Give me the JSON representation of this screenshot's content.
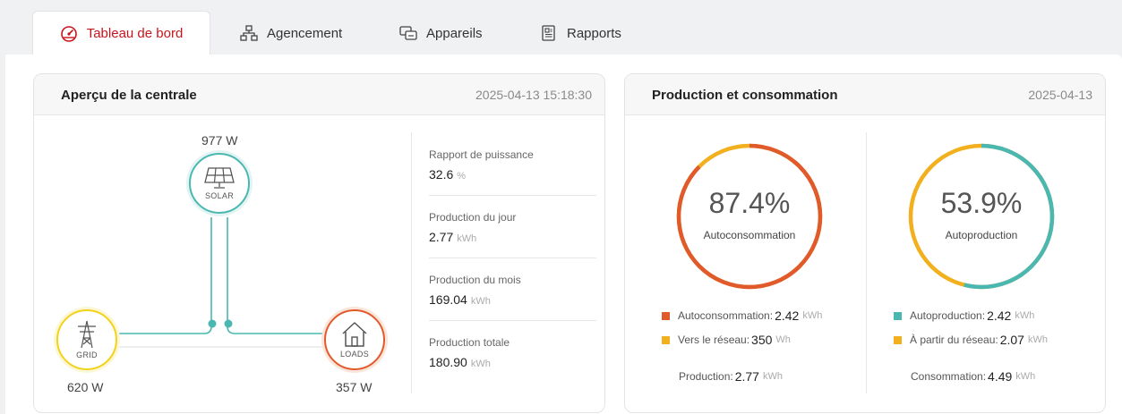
{
  "tabs": [
    {
      "label": "Tableau de bord",
      "icon": "gauge-icon",
      "active": true
    },
    {
      "label": "Agencement",
      "icon": "sitemap-icon",
      "active": false
    },
    {
      "label": "Appareils",
      "icon": "devices-icon",
      "active": false
    },
    {
      "label": "Rapports",
      "icon": "report-icon",
      "active": false
    }
  ],
  "overview": {
    "title": "Aperçu de la centrale",
    "datetime": "2025-04-13 15:18:30",
    "solar": {
      "power": "977 W",
      "label": "SOLAR"
    },
    "grid": {
      "power": "620 W",
      "label": "GRID"
    },
    "loads": {
      "power": "357 W",
      "label": "LOADS"
    },
    "stats": [
      {
        "title": "Rapport de puissance",
        "value": "32.6",
        "unit": "%"
      },
      {
        "title": "Production du jour",
        "value": "2.77",
        "unit": "kWh"
      },
      {
        "title": "Production du mois",
        "value": "169.04",
        "unit": "kWh"
      },
      {
        "title": "Production totale",
        "value": "180.90",
        "unit": "kWh"
      }
    ]
  },
  "prodcons": {
    "title": "Production et consommation",
    "date": "2025-04-13",
    "left": {
      "percent": "87.4%",
      "fraction": 0.874,
      "label": "Autoconsommation",
      "legend": [
        {
          "label": "Autoconsommation:",
          "value": "2.42",
          "unit": "kWh"
        },
        {
          "label": "Vers le réseau:",
          "value": "350",
          "unit": "Wh"
        }
      ],
      "footer": {
        "label": "Production:",
        "value": "2.77",
        "unit": "kWh"
      }
    },
    "right": {
      "percent": "53.9%",
      "fraction": 0.539,
      "label": "Autoproduction",
      "legend": [
        {
          "label": "Autoproduction:",
          "value": "2.42",
          "unit": "kWh"
        },
        {
          "label": "À partir du réseau:",
          "value": "2.07",
          "unit": "kWh"
        }
      ],
      "footer": {
        "label": "Consommation:",
        "value": "4.49",
        "unit": "kWh"
      }
    }
  },
  "colors": {
    "accent": "#c8141c",
    "teal": "#4ab8b0",
    "orange": "#e05a2b",
    "yellow": "#f2b01e",
    "grid_yellow": "#f3d21b"
  }
}
